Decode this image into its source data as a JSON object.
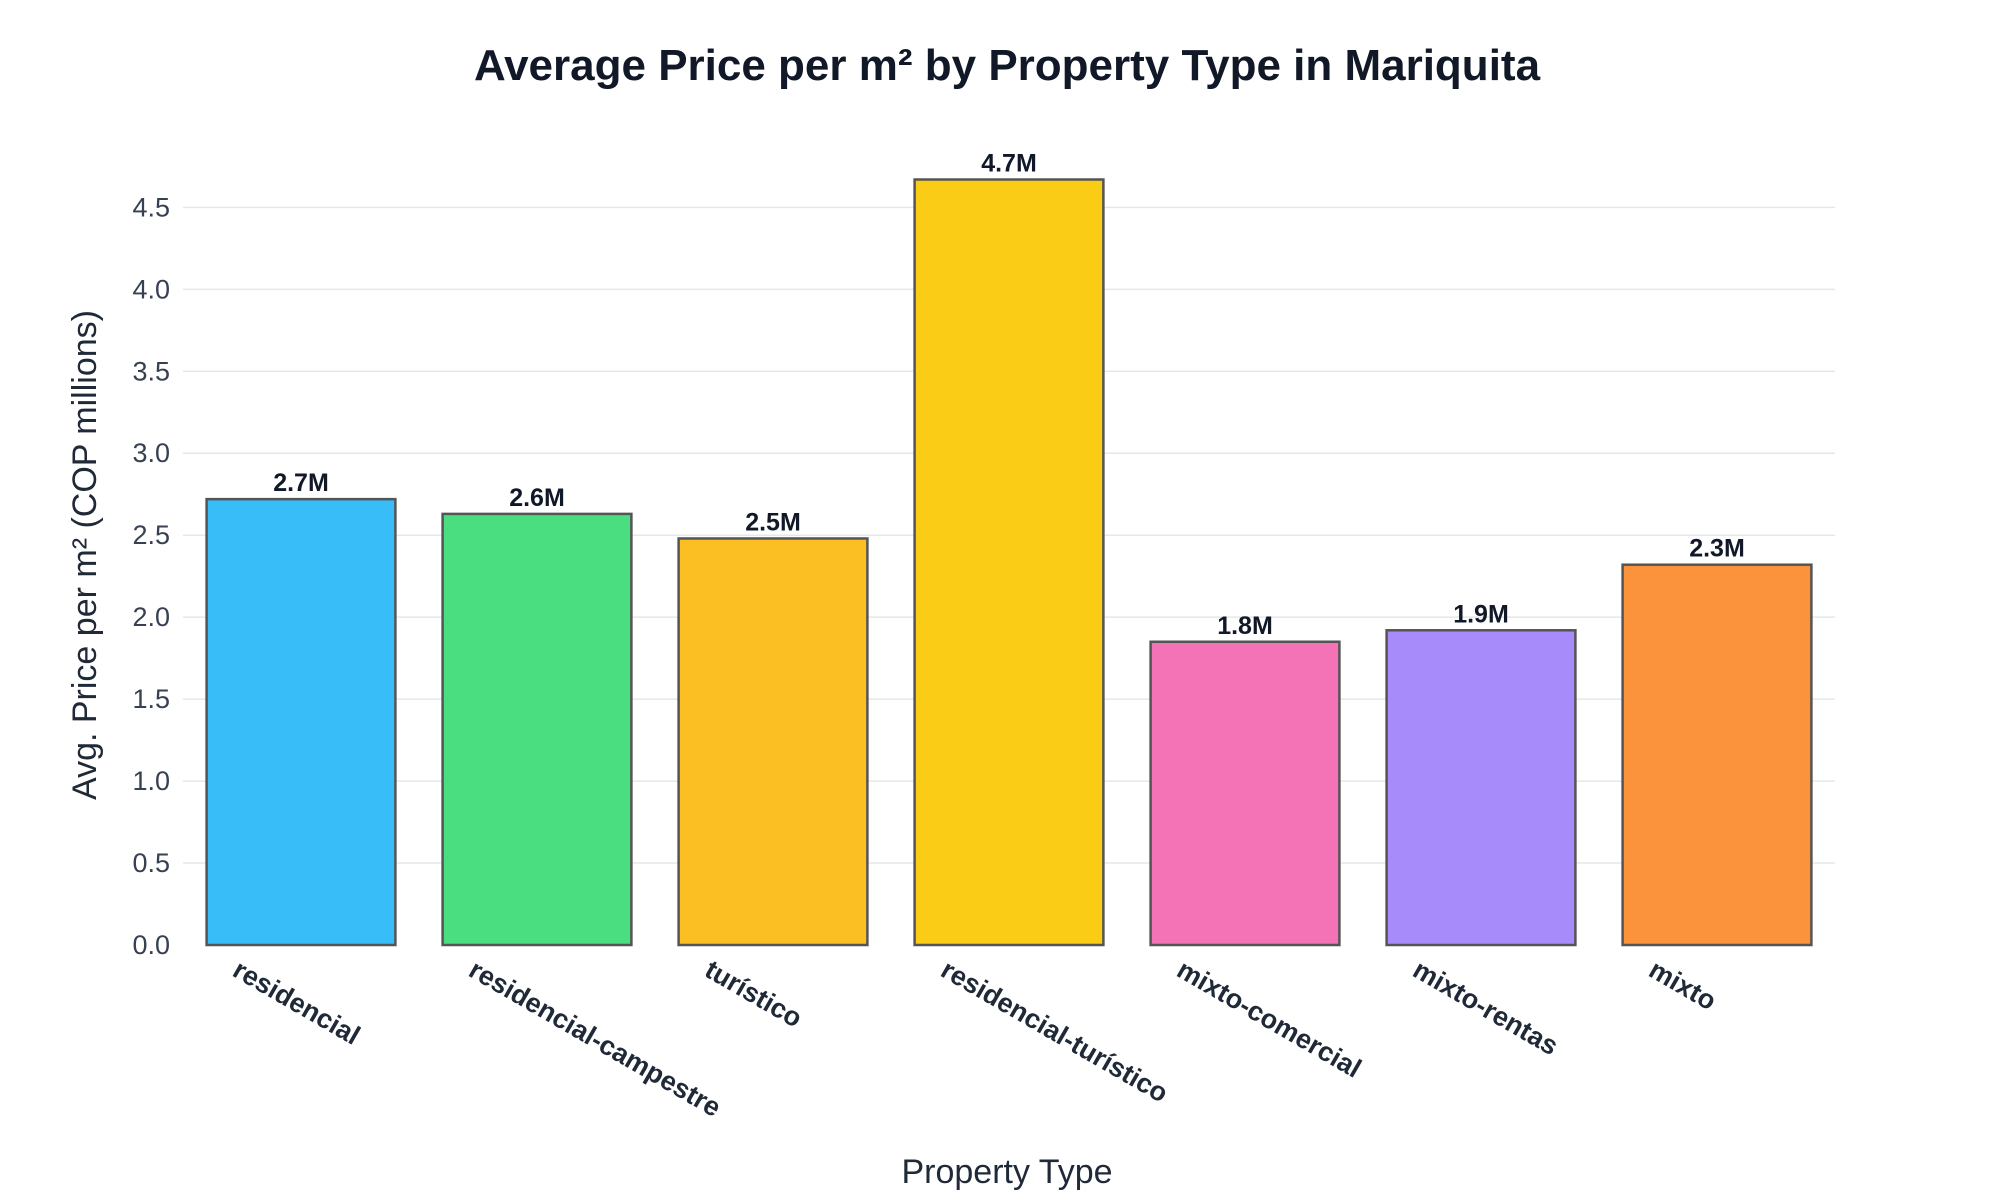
{
  "chart_data": {
    "type": "bar",
    "title": "Average Price per m² by Property Type in Mariquita",
    "xlabel": "Property Type",
    "ylabel": "Avg. Price per m² (COP millions)",
    "categories": [
      "residencial",
      "residencial-campestre",
      "turístico",
      "residencial-turístico",
      "mixto-comercial",
      "mixto-rentas",
      "mixto"
    ],
    "values": [
      2.72,
      2.63,
      2.48,
      4.67,
      1.85,
      1.92,
      2.32
    ],
    "value_labels": [
      "2.7M",
      "2.6M",
      "2.5M",
      "4.7M",
      "1.8M",
      "1.9M",
      "2.3M"
    ],
    "colors": [
      "#38bdf8",
      "#4ade80",
      "#fbbf24",
      "#facc15",
      "#f472b6",
      "#a78bfa",
      "#fb923c"
    ],
    "bar_outline_color": "#555555",
    "ylim": [
      0,
      4.85
    ],
    "yticks": [
      "0.0",
      "0.5",
      "1.0",
      "1.5",
      "2.0",
      "2.5",
      "3.0",
      "3.5",
      "4.0",
      "4.5"
    ],
    "grid": true,
    "legend": "none"
  }
}
